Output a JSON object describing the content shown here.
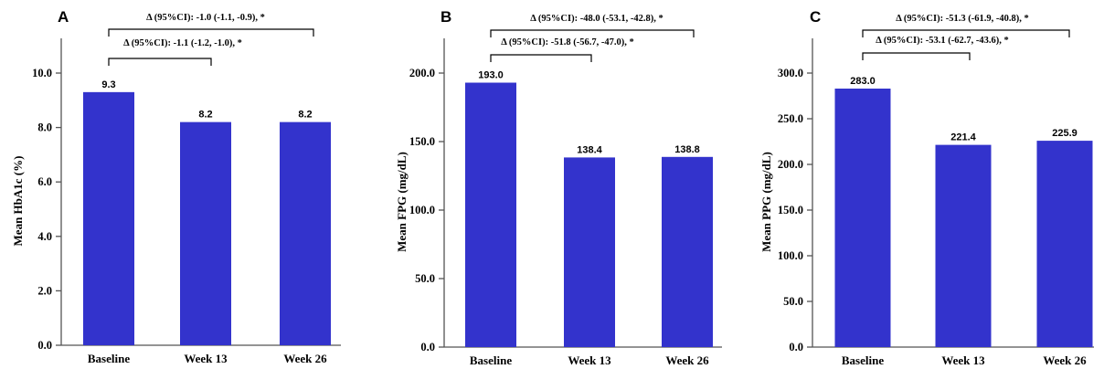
{
  "colors": {
    "bar": "#3333cc",
    "axis": "#555555",
    "text": "#000000"
  },
  "chart_data": [
    {
      "type": "bar",
      "panel": "A",
      "ylabel": "Mean HbA1c (%)",
      "categories": [
        "Baseline",
        "Week 13",
        "Week 26"
      ],
      "values": [
        9.3,
        8.2,
        8.2
      ],
      "data_labels": [
        "9.3",
        "8.2",
        "8.2"
      ],
      "ylim": [
        0,
        10
      ],
      "yticks": [
        0,
        2,
        4,
        6,
        8,
        10
      ],
      "ytick_labels": [
        "0.0",
        "2.0",
        "4.0",
        "6.0",
        "8.0",
        "10.0"
      ],
      "annotations": [
        {
          "from": "Baseline",
          "to": "Week 26",
          "text": "Δ (95%CI):  -1.0 (-1.1, -0.9), *"
        },
        {
          "from": "Baseline",
          "to": "Week 13",
          "text": "Δ (95%CI):  -1.1 (-1.2, -1.0), *"
        }
      ]
    },
    {
      "type": "bar",
      "panel": "B",
      "ylabel": "Mean FPG (mg/dL)",
      "categories": [
        "Baseline",
        "Week 13",
        "Week 26"
      ],
      "values": [
        193.0,
        138.4,
        138.8
      ],
      "data_labels": [
        "193.0",
        "138.4",
        "138.8"
      ],
      "ylim": [
        0,
        200
      ],
      "yticks": [
        0,
        50,
        100,
        150,
        200
      ],
      "ytick_labels": [
        "0.0",
        "50.0",
        "100.0",
        "150.0",
        "200.0"
      ],
      "annotations": [
        {
          "from": "Baseline",
          "to": "Week 26",
          "text": "Δ (95%CI):  -48.0 (-53.1, -42.8), *"
        },
        {
          "from": "Baseline",
          "to": "Week 13",
          "text": "Δ (95%CI):  -51.8 (-56.7, -47.0), *"
        }
      ]
    },
    {
      "type": "bar",
      "panel": "C",
      "ylabel": "Mean PPG (mg/dL)",
      "categories": [
        "Baseline",
        "Week 13",
        "Week 26"
      ],
      "values": [
        283.0,
        221.4,
        225.9
      ],
      "data_labels": [
        "283.0",
        "221.4",
        "225.9"
      ],
      "ylim": [
        0,
        300
      ],
      "yticks": [
        0,
        50,
        100,
        150,
        200,
        250,
        300
      ],
      "ytick_labels": [
        "0.0",
        "50.0",
        "100.0",
        "150.0",
        "200.0",
        "250.0",
        "300.0"
      ],
      "annotations": [
        {
          "from": "Baseline",
          "to": "Week 26",
          "text": "Δ (95%CI):  -51.3 (-61.9, -40.8), *"
        },
        {
          "from": "Baseline",
          "to": "Week 13",
          "text": "Δ (95%CI):  -53.1 (-62.7, -43.6), *"
        }
      ]
    }
  ]
}
